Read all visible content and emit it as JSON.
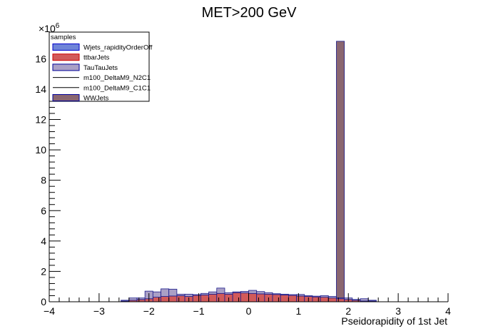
{
  "chart_data": {
    "type": "bar",
    "title": "MET>200 GeV",
    "xlabel": "Pseidorapidity of 1st Jet",
    "ylabel": "",
    "y_multiplier_label": "×10",
    "y_multiplier_exp": "6",
    "xlim": [
      -4,
      4
    ],
    "ylim": [
      0,
      17.8
    ],
    "x_ticks": [
      "−4",
      "−3",
      "−2",
      "−1",
      "0",
      "1",
      "2",
      "3",
      "4"
    ],
    "y_ticks": [
      "0",
      "2",
      "4",
      "6",
      "8",
      "10",
      "12",
      "14",
      "16"
    ],
    "bin_width": 0.16,
    "bin_edges_start": -2.56,
    "legend": {
      "title": "samples",
      "position": "top-left",
      "entries": [
        {
          "label": "Wjets_rapidityOrderOff",
          "kind": "fill",
          "fill": "#6f84d8",
          "line": "#0000cc"
        },
        {
          "label": "ttbarJets",
          "kind": "fill",
          "fill": "#d25a5a",
          "line": "#cc0000"
        },
        {
          "label": "TauTauJets",
          "kind": "fill",
          "fill": "#aaa0c6",
          "line": "#000099"
        },
        {
          "label": "m100_DeltaM9_N2C1",
          "kind": "line",
          "line": "#000000"
        },
        {
          "label": "m100_DeltaM9_C1C1",
          "kind": "line",
          "line": "#000000"
        },
        {
          "label": "WWJets",
          "kind": "fill",
          "fill": "#8a6670",
          "line": "#000099"
        }
      ]
    },
    "series": [
      {
        "name": "ttbarJets",
        "color": "#d25a5a",
        "values": [
          0.05,
          0.1,
          0.15,
          0.2,
          0.3,
          0.35,
          0.38,
          0.4,
          0.35,
          0.42,
          0.45,
          0.5,
          0.55,
          0.5,
          0.6,
          0.58,
          0.55,
          0.52,
          0.5,
          0.48,
          0.45,
          0.42,
          0.38,
          0.35,
          0.32,
          0.3,
          0.25,
          0.2,
          0.15,
          0.1,
          0.05,
          0.05
        ]
      },
      {
        "name": "TauTauJets",
        "color": "#aaa0c6",
        "values": [
          0.05,
          0.15,
          0.1,
          0.5,
          0.35,
          0.5,
          0.45,
          0.1,
          0.15,
          0.05,
          0.1,
          0.15,
          0.35,
          0.1,
          0.05,
          0.1,
          0.2,
          0.15,
          0.1,
          0.05,
          0.05,
          0.05,
          0.1,
          0.05,
          0.05,
          0.1,
          0.1,
          0.05,
          0.1,
          0.05,
          0.15,
          0.05
        ]
      },
      {
        "name": "WWJets",
        "color": "#8a6670",
        "values": [
          0,
          0,
          0,
          0,
          0,
          0,
          0,
          0,
          0,
          0,
          0,
          0,
          0,
          0,
          0,
          0,
          0,
          0,
          0,
          0,
          0,
          0,
          0,
          0,
          0,
          0,
          0,
          16.9,
          0,
          0,
          0,
          0
        ]
      }
    ]
  }
}
